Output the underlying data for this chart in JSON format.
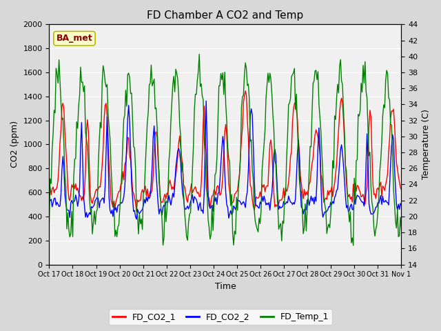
{
  "title": "FD Chamber A CO2 and Temp",
  "xlabel": "Time",
  "ylabel_left": "CO2 (ppm)",
  "ylabel_right": "Temperature (C)",
  "ylim_left": [
    0,
    2000
  ],
  "ylim_right": [
    14,
    44
  ],
  "yticks_left": [
    0,
    200,
    400,
    600,
    800,
    1000,
    1200,
    1400,
    1600,
    1800,
    2000
  ],
  "yticks_right": [
    14,
    16,
    18,
    20,
    22,
    24,
    26,
    28,
    30,
    32,
    34,
    36,
    38,
    40,
    42,
    44
  ],
  "xtick_positions": [
    0,
    1,
    2,
    3,
    4,
    5,
    6,
    7,
    8,
    9,
    10,
    11,
    12,
    13,
    14,
    15
  ],
  "xtick_labels": [
    "Oct 17",
    "Oct 18",
    "Oct 19",
    "Oct 20",
    "Oct 21",
    "Oct 22",
    "Oct 23",
    "Oct 24",
    "Oct 25",
    "Oct 26",
    "Oct 27",
    "Oct 28",
    "Oct 29",
    "Oct 30",
    "Oct 31",
    "Nov 1"
  ],
  "color_co2_1": "red",
  "color_co2_2": "blue",
  "color_temp": "green",
  "line_width": 1.0,
  "fig_bg_color": "#d8d8d8",
  "inner_bg_color": "#f0f0f0",
  "legend_labels": [
    "FD_CO2_1",
    "FD_CO2_2",
    "FD_Temp_1"
  ],
  "annotation_text": "BA_met",
  "annotation_color": "darkred",
  "annotation_bg": "#ffffcc",
  "annotation_edge": "#b8b800"
}
